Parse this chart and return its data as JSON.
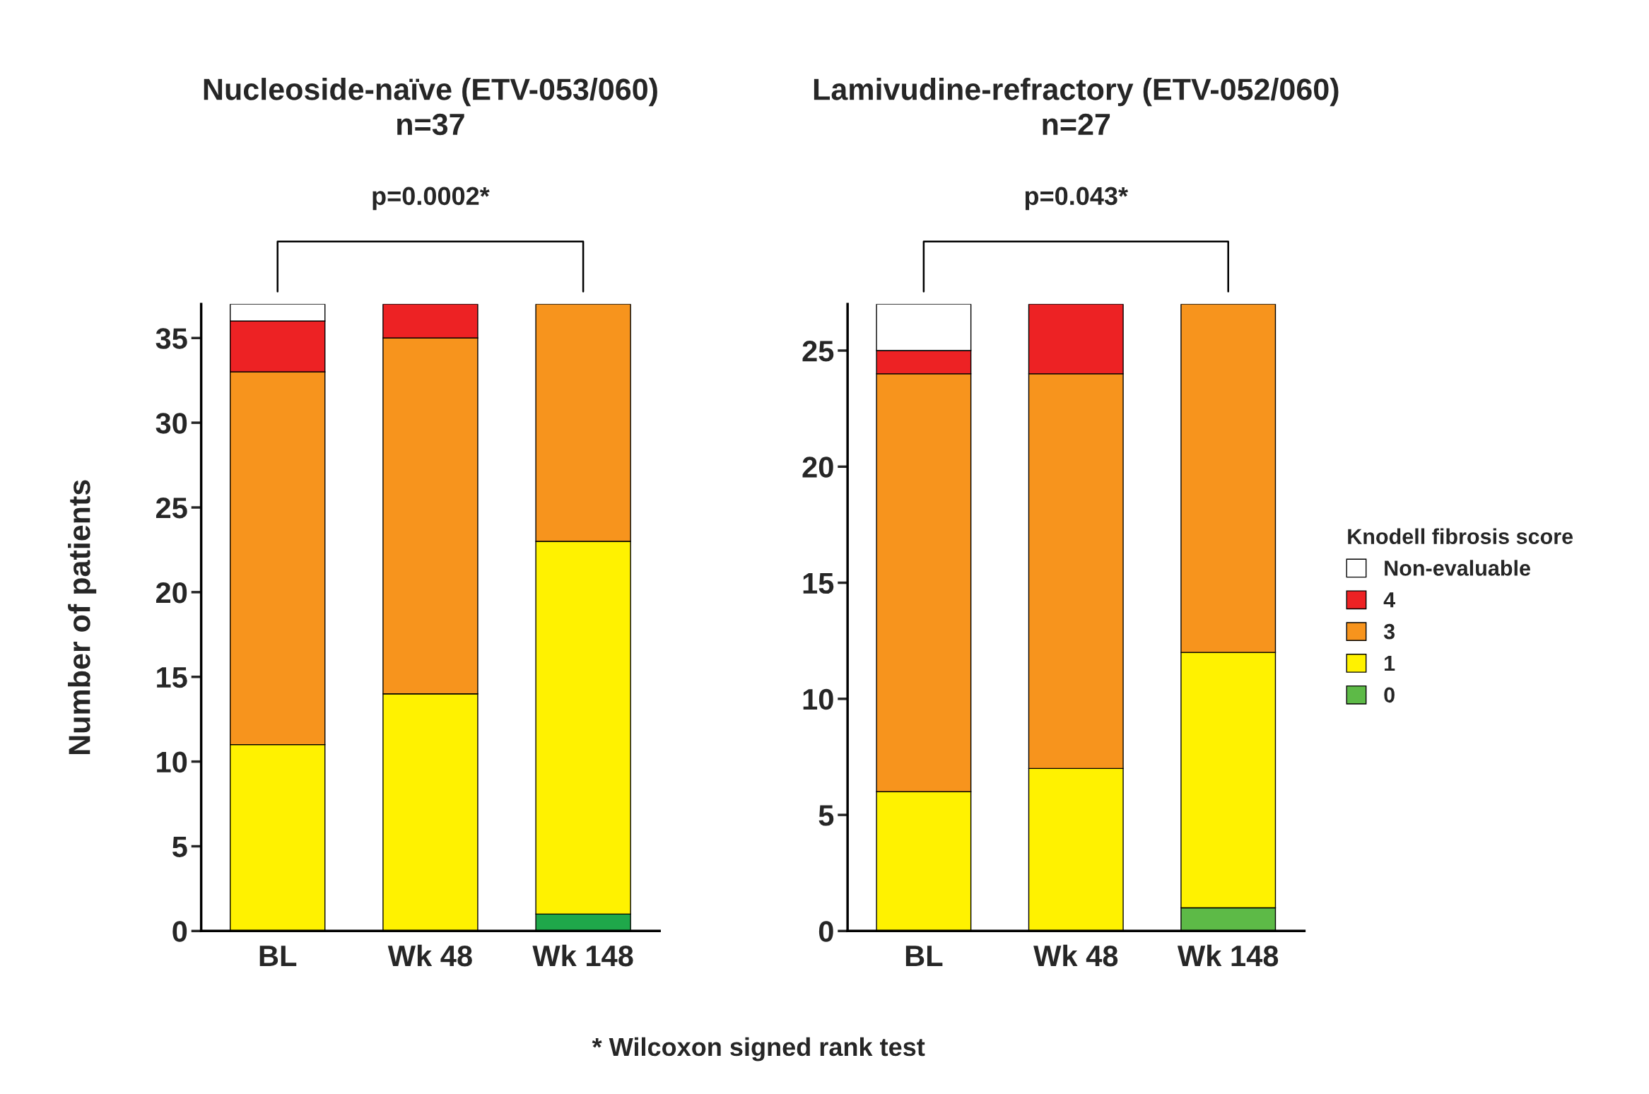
{
  "chart_data": [
    {
      "type": "bar",
      "stacked": true,
      "title": "Nucleoside-naïve (ETV-053/060)\nn=37",
      "ylabel": "Number of patients",
      "categories": [
        "BL",
        "Wk 48",
        "Wk 148"
      ],
      "ylim": [
        0,
        37
      ],
      "yticks": [
        0,
        5,
        10,
        15,
        20,
        25,
        30,
        35
      ],
      "grid": false,
      "legend": false,
      "series": [
        {
          "color": "#1fa84a",
          "values": [
            0,
            0,
            1
          ]
        },
        {
          "color": "#fff200",
          "values": [
            11,
            14,
            22
          ]
        },
        {
          "color": "#f7941d",
          "values": [
            22,
            21,
            14
          ]
        },
        {
          "color": "#ed2224",
          "values": [
            3,
            2,
            0
          ]
        },
        {
          "color": "#ffffff",
          "values": [
            1,
            0,
            0
          ]
        }
      ],
      "annotations": [
        "p=0.0002*",
        "* Wilcoxon signed rank test"
      ]
    },
    {
      "type": "bar",
      "stacked": true,
      "title": "Lamivudine-refractory (ETV-052/060)\nn=27",
      "categories": [
        "BL",
        "Wk 48",
        "Wk 148"
      ],
      "ylim": [
        0,
        27
      ],
      "yticks": [
        0,
        5,
        10,
        15,
        20,
        25
      ],
      "grid": false,
      "legend": "right",
      "legend_title": "Knodell fibrosis score",
      "series": [
        {
          "name": "0",
          "color": "#5dba47",
          "values": [
            0,
            0,
            1
          ]
        },
        {
          "name": "1",
          "color": "#fff200",
          "values": [
            6,
            7,
            11
          ]
        },
        {
          "name": "3",
          "color": "#f7941d",
          "values": [
            18,
            17,
            15
          ]
        },
        {
          "name": "4",
          "color": "#ed2224",
          "values": [
            1,
            3,
            0
          ]
        },
        {
          "name": "Non-evaluable",
          "color": "#ffffff",
          "values": [
            2,
            0,
            0
          ]
        }
      ],
      "annotations": [
        "p=0.043*"
      ]
    }
  ]
}
